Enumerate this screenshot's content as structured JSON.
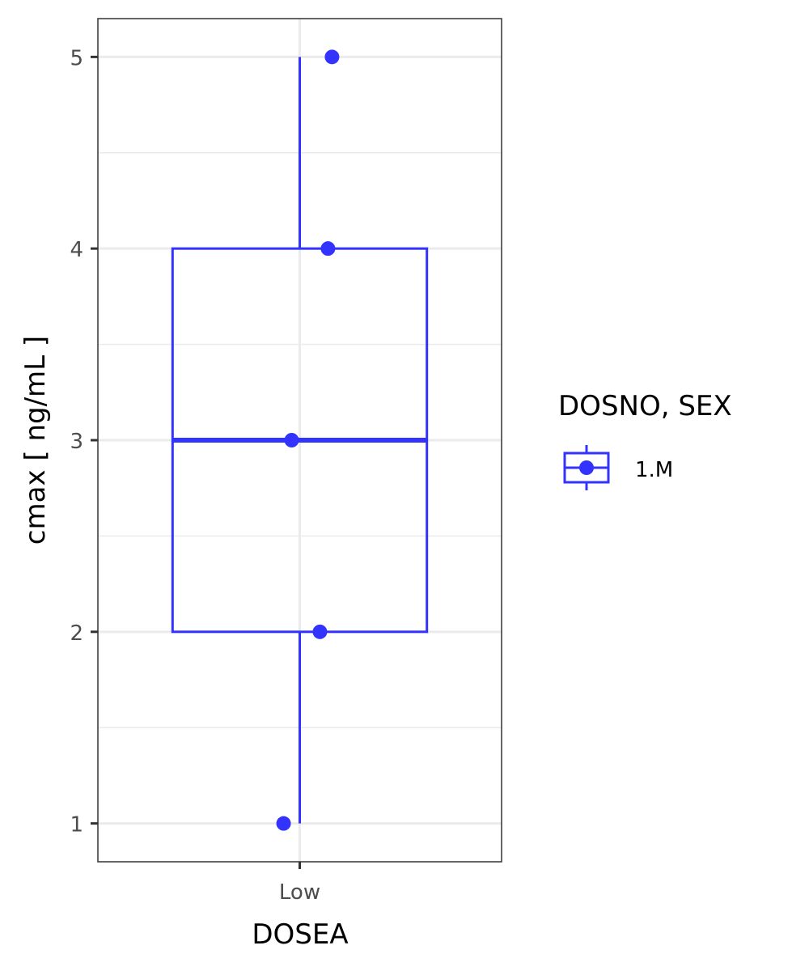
{
  "chart_data": {
    "type": "boxplot",
    "xlabel": "DOSEA",
    "ylabel": "cmax  [ ng/mL ]",
    "categories": [
      "Low"
    ],
    "ylim": [
      0.8,
      5.2
    ],
    "yticks": [
      1,
      2,
      3,
      4,
      5
    ],
    "grid": true,
    "legend": {
      "title": "DOSNO, SEX",
      "placement": "right",
      "entries": [
        "1.M"
      ]
    },
    "series": [
      {
        "name": "1.M",
        "color": "#3333ff",
        "category": "Low",
        "box": {
          "min": 1,
          "q1": 2,
          "median": 3,
          "q3": 4,
          "max": 5
        },
        "points": [
          {
            "x_jitter": 0.08,
            "y": 5
          },
          {
            "x_jitter": 0.07,
            "y": 4
          },
          {
            "x_jitter": -0.02,
            "y": 3
          },
          {
            "x_jitter": 0.05,
            "y": 2
          },
          {
            "x_jitter": -0.04,
            "y": 1
          }
        ]
      }
    ]
  }
}
